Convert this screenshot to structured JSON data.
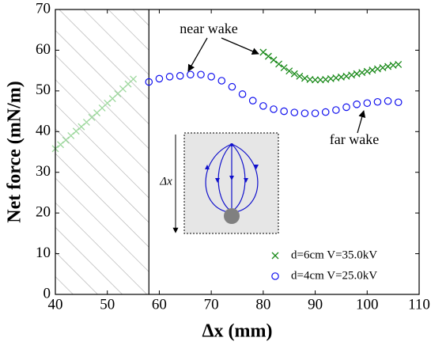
{
  "chart_data": {
    "type": "scatter",
    "xlabel": "Δx (mm)",
    "ylabel": "Net force (mN/m)",
    "xlim": [
      40,
      110
    ],
    "xticks": [
      40,
      50,
      60,
      70,
      80,
      90,
      100,
      110
    ],
    "ylim": [
      0,
      70
    ],
    "yticks": [
      0,
      10,
      20,
      30,
      40,
      50,
      60,
      70
    ],
    "legend": "lower right",
    "series": [
      {
        "name": "d=6cm V=35.0kV",
        "color": "#1a8a1a",
        "marker": "x",
        "x": [
          80,
          81,
          82,
          83,
          84,
          85,
          86,
          87,
          88,
          89,
          90,
          91,
          92,
          93,
          94,
          95,
          96,
          97,
          98,
          99,
          100,
          101,
          102,
          103,
          104,
          105,
          106
        ],
        "values": [
          59.5,
          58.5,
          57.6,
          56.6,
          55.7,
          54.9,
          54.2,
          53.6,
          53.1,
          52.8,
          52.7,
          52.7,
          52.8,
          53,
          53.2,
          53.4,
          53.6,
          53.9,
          54.2,
          54.5,
          54.8,
          55.1,
          55.4,
          55.7,
          56,
          56.3,
          56.5
        ]
      },
      {
        "name": "d=4cm V=25.0kV",
        "color": "#1010ee",
        "marker": "o",
        "x": [
          58,
          60,
          62,
          64,
          66,
          68,
          70,
          72,
          74,
          76,
          78,
          80,
          82,
          84,
          86,
          88,
          90,
          92,
          94,
          96,
          98,
          100,
          102,
          104,
          106
        ],
        "values": [
          52.2,
          53,
          53.5,
          53.7,
          54,
          54,
          53.5,
          52.5,
          51,
          49.2,
          47.6,
          46.3,
          45.5,
          45,
          44.7,
          44.5,
          44.5,
          44.8,
          45.3,
          46,
          46.7,
          47,
          47.3,
          47.5,
          47.2
        ]
      }
    ],
    "masked_series": {
      "color": "#9ed89e",
      "x": [
        40,
        41,
        42,
        43,
        44,
        45,
        46,
        47,
        48,
        49,
        50,
        51,
        52,
        53,
        54,
        55
      ],
      "values": [
        35.8,
        36.8,
        37.9,
        39,
        40.1,
        41.2,
        42.3,
        43.5,
        44.6,
        45.8,
        47,
        48.1,
        49.3,
        50.5,
        51.7,
        52.9
      ]
    },
    "masked_xlim": [
      40,
      58
    ],
    "annotations": [
      "near wake",
      "far wake",
      "Δx"
    ]
  }
}
